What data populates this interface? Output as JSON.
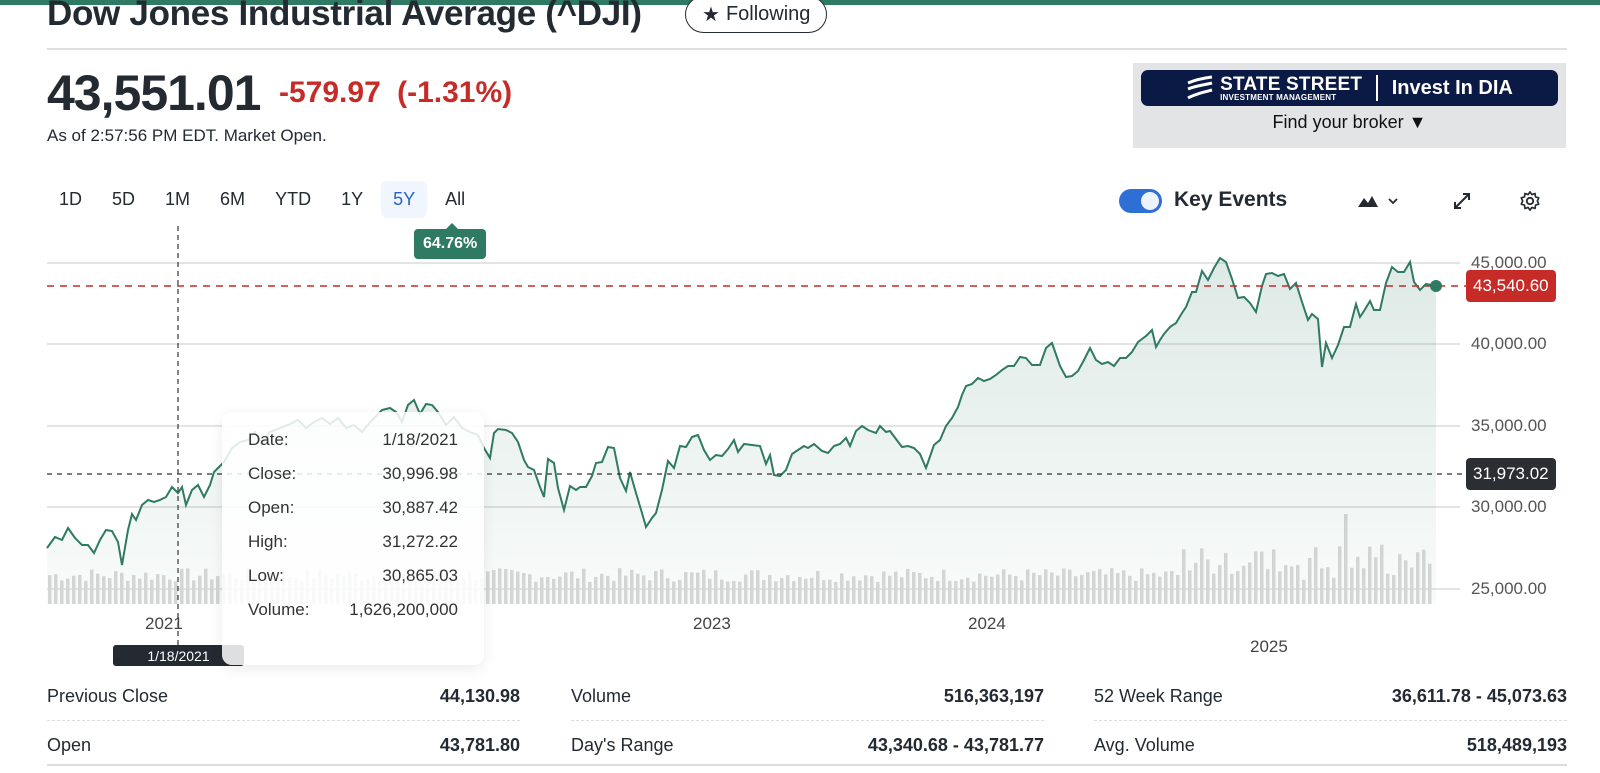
{
  "header": {
    "title": "Dow Jones Industrial Average (^DJI)",
    "follow_label": "Following",
    "follow_icon": "star-icon"
  },
  "quote": {
    "price": "43,551.01",
    "change": "-579.97",
    "change_pct": "(-1.31%)",
    "as_of": "As of 2:57:56 PM EDT. Market Open."
  },
  "ad": {
    "brand_main": "STATE STREET",
    "brand_sub": "INVESTMENT MANAGEMENT",
    "cta": "Invest In DIA",
    "broker_label": "Find your broker"
  },
  "chart_controls": {
    "ranges": [
      {
        "label": "1D",
        "active": false
      },
      {
        "label": "5D",
        "active": false
      },
      {
        "label": "1M",
        "active": false
      },
      {
        "label": "6M",
        "active": false
      },
      {
        "label": "YTD",
        "active": false
      },
      {
        "label": "1Y",
        "active": false
      },
      {
        "label": "5Y",
        "active": true
      },
      {
        "label": "All",
        "active": false
      }
    ],
    "range_change_pct": "64.76%",
    "key_events_label": "Key Events",
    "key_events_on": true,
    "chart_type_icon": "mountain-chart-icon",
    "expand_icon": "expand-icon",
    "settings_icon": "gear-icon"
  },
  "chart_data": {
    "type": "area",
    "title": "Dow Jones Industrial Average (^DJI) 5Y",
    "xlabel": "",
    "ylabel": "",
    "x_ticks": [
      "2021",
      "2023",
      "2024",
      "2025"
    ],
    "y_ticks": [
      "45,000.00",
      "40,000.00",
      "35,000.00",
      "30,000.00",
      "25,000.00"
    ],
    "ylim": [
      24000,
      46000
    ],
    "current_price_tag": "43,540.60",
    "crosshair_price_tag": "31,973.02",
    "crosshair_date_tag": "1/18/2021",
    "grid": true,
    "series": [
      {
        "name": "Close",
        "x": [
          "2020-07",
          "2020-10",
          "2021-01",
          "2021-04",
          "2021-07",
          "2021-10",
          "2022-01",
          "2022-04",
          "2022-07",
          "2022-10",
          "2023-01",
          "2023-04",
          "2023-07",
          "2023-10",
          "2024-01",
          "2024-04",
          "2024-07",
          "2024-10",
          "2025-01",
          "2025-04",
          "2025-06"
        ],
        "values": [
          27000,
          28000,
          31000,
          33500,
          34800,
          35500,
          36000,
          34000,
          31500,
          29500,
          34000,
          33500,
          35300,
          33000,
          37500,
          38500,
          40800,
          42000,
          44500,
          38500,
          43540
        ]
      }
    ],
    "tooltip": {
      "date": "1/18/2021",
      "close": "30,996.98",
      "open": "30,887.42",
      "high": "31,272.22",
      "low": "30,865.03",
      "volume": "1,626,200,000"
    }
  },
  "tooltip_labels": {
    "date": "Date:",
    "close": "Close:",
    "open": "Open:",
    "high": "High:",
    "low": "Low:",
    "volume": "Volume:"
  },
  "stats": [
    [
      {
        "label": "Previous Close",
        "value": "44,130.98"
      },
      {
        "label": "Open",
        "value": "43,781.80"
      }
    ],
    [
      {
        "label": "Volume",
        "value": "516,363,197"
      },
      {
        "label": "Day's Range",
        "value": "43,340.68 - 43,781.77"
      }
    ],
    [
      {
        "label": "52 Week Range",
        "value": "36,611.78 - 45,073.63"
      },
      {
        "label": "Avg. Volume",
        "value": "518,489,193"
      }
    ]
  ],
  "colors": {
    "accent_green": "#2f7a63",
    "negative_red": "#c62b28",
    "active_blue": "#2962c8",
    "toggle_blue": "#2e6fd6",
    "ad_navy": "#0b1a45"
  }
}
